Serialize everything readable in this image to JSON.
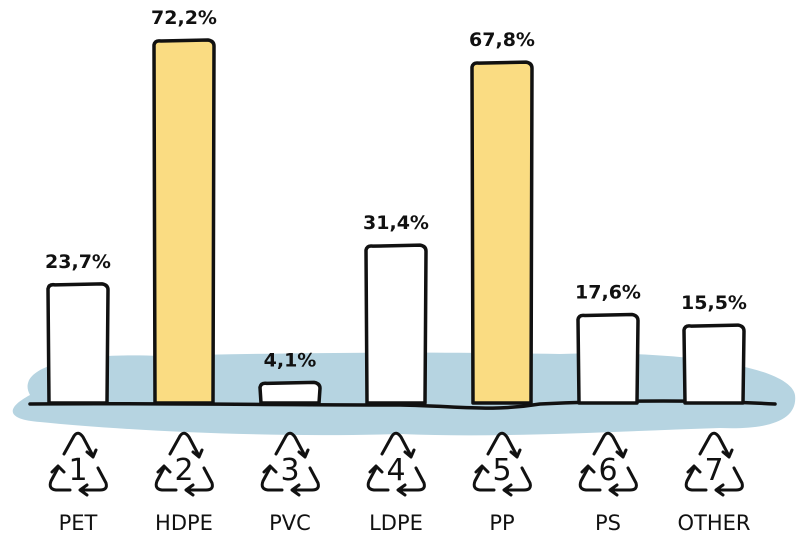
{
  "chart_data": {
    "type": "bar",
    "categories": [
      "PET",
      "HDPE",
      "PVC",
      "LDPE",
      "PP",
      "PS",
      "OTHER"
    ],
    "resin_codes": [
      "1",
      "2",
      "3",
      "4",
      "5",
      "6",
      "7"
    ],
    "values": [
      23.7,
      72.2,
      4.1,
      31.4,
      67.8,
      17.6,
      15.5
    ],
    "value_labels": [
      "23,7%",
      "72,2%",
      "4,1%",
      "31,4%",
      "67,8%",
      "17,6%",
      "15,5%"
    ],
    "highlighted": [
      false,
      true,
      false,
      false,
      true,
      false,
      false
    ],
    "title": "",
    "xlabel": "",
    "ylabel": "",
    "ylim": [
      0,
      80
    ],
    "grid": false,
    "legend": "none"
  },
  "colors": {
    "highlight": "#fadc82",
    "default_bar": "#ffffff",
    "water": "#b6d4e1",
    "outline": "#111111"
  },
  "icons": {
    "recycle": "recycle-triangle-icon"
  }
}
